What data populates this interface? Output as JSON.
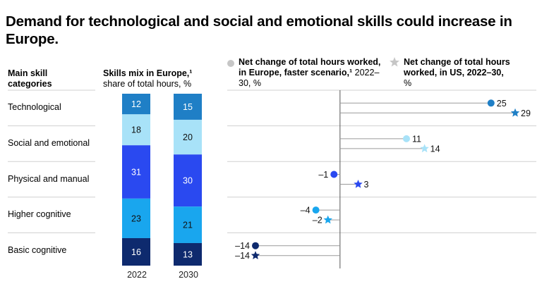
{
  "title": "Demand for technological and social and emotional skills could increase in Europe.",
  "headers": {
    "categories_title": "Main skill categories",
    "mix_title": "Skills mix in Europe,¹",
    "mix_sub": "share of total hours, %",
    "legend_europe_title": "Net change of total hours worked, in Europe, faster scenario,¹",
    "legend_europe_sub": "2022–30, %",
    "legend_us_title": "Net change of total hours worked, in US, 2022–30,",
    "legend_us_sub": "%"
  },
  "colors": {
    "dark_navy": "#0e2a6e",
    "blue": "#2a49f0",
    "mid_blue": "#1f7fc6",
    "cyan": "#19a6ee",
    "light_cyan": "#a8e2f8",
    "legend_grey": "#c6c6c6"
  },
  "chart_data": [
    {
      "type": "bar",
      "stacked": true,
      "title": "Skills mix in Europe,¹",
      "ylabel": "share of total hours, %",
      "categories": [
        "2022",
        "2030"
      ],
      "series": [
        {
          "name": "Technological",
          "values": [
            12,
            15
          ],
          "color": "#1f7fc6"
        },
        {
          "name": "Social and emotional",
          "values": [
            18,
            20
          ],
          "color": "#a8e2f8"
        },
        {
          "name": "Physical and manual",
          "values": [
            31,
            30
          ],
          "color": "#2a49f0"
        },
        {
          "name": "Higher cognitive",
          "values": [
            23,
            21
          ],
          "color": "#19a6ee"
        },
        {
          "name": "Basic cognitive",
          "values": [
            16,
            13
          ],
          "color": "#0e2a6e"
        }
      ]
    },
    {
      "type": "scatter",
      "title": "Net change of total hours worked",
      "categories": [
        "Technological",
        "Social and emotional",
        "Physical and manual",
        "Higher cognitive",
        "Basic cognitive"
      ],
      "xlim": [
        -14,
        29
      ],
      "series": [
        {
          "name": "Net change of total hours worked, in Europe, faster scenario,¹ 2022–30, %",
          "marker": "circle",
          "values": [
            25,
            11,
            -1,
            -4,
            -14
          ],
          "labels": [
            "25",
            "11",
            "–1",
            "–4",
            "–14"
          ]
        },
        {
          "name": "Net change of total hours worked, in US, 2022–30, %",
          "marker": "star",
          "values": [
            29,
            14,
            3,
            -2,
            -14
          ],
          "labels": [
            "29",
            "14",
            "3",
            "–2",
            "–14"
          ]
        }
      ],
      "marker_colors": [
        "#1f7fc6",
        "#a8e2f8",
        "#2a49f0",
        "#19a6ee",
        "#0e2a6e"
      ]
    }
  ]
}
